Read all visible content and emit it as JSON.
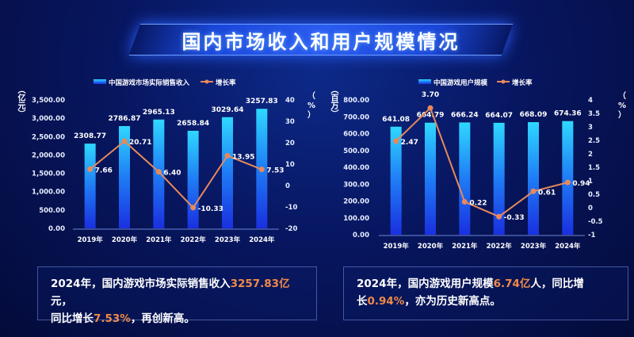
{
  "title": "国内市场收入和用户规模情况",
  "chart_data": [
    {
      "type": "bar",
      "categories": [
        "2019年",
        "2020年",
        "2021年",
        "2022年",
        "2023年",
        "2024年"
      ],
      "series": [
        {
          "name": "中国游戏市场实际销售收入",
          "axis": "left",
          "values": [
            2308.77,
            2786.87,
            2965.13,
            2658.84,
            3029.64,
            3257.83
          ],
          "labels": [
            "2308.77",
            "2786.87",
            "2965.13",
            "2658.84",
            "3029.64",
            "3257.83"
          ]
        },
        {
          "name": "增长率",
          "type": "line",
          "axis": "right",
          "values": [
            7.66,
            20.71,
            6.4,
            -10.33,
            13.95,
            7.53
          ],
          "labels": [
            "7.66",
            "20.71",
            "6.40",
            "-10.33",
            "13.95",
            "7.53"
          ]
        }
      ],
      "ylabel": "（亿元）",
      "y2label": "（%）",
      "ylim": [
        0,
        3500
      ],
      "y2lim": [
        -20,
        40
      ],
      "yticks": [
        "0.00",
        "500.00",
        "1,000.00",
        "1,500.00",
        "2,000.00",
        "2,500.00",
        "3,000.00",
        "3,500.00"
      ],
      "y2ticks": [
        "-20",
        "-10",
        "0",
        "10",
        "20",
        "30",
        "40"
      ],
      "legend": "top"
    },
    {
      "type": "bar",
      "categories": [
        "2019年",
        "2020年",
        "2021年",
        "2022年",
        "2023年",
        "2024年"
      ],
      "series": [
        {
          "name": "中国游戏用户规模",
          "axis": "left",
          "values": [
            641.08,
            664.79,
            666.24,
            664.07,
            668.09,
            674.36
          ],
          "labels": [
            "641.08",
            "664.79",
            "666.24",
            "664.07",
            "668.09",
            "674.36"
          ]
        },
        {
          "name": "增长率",
          "type": "line",
          "axis": "right",
          "values": [
            2.47,
            3.7,
            0.22,
            -0.33,
            0.61,
            0.94
          ],
          "labels": [
            "2.47",
            "3.70",
            "0.22",
            "-0.33",
            "0.61",
            "0.94"
          ]
        }
      ],
      "ylabel": "（百万）",
      "y2label": "（%）",
      "ylim": [
        0,
        800
      ],
      "y2lim": [
        -1,
        4
      ],
      "yticks": [
        "0.00",
        "100.00",
        "200.00",
        "300.00",
        "400.00",
        "500.00",
        "600.00",
        "700.00",
        "800.00"
      ],
      "y2ticks": [
        "-1",
        "-0.5",
        "0",
        "0.5",
        "1",
        "1.5",
        "2",
        "2.5",
        "3",
        "3.5",
        "4"
      ],
      "legend": "top"
    }
  ],
  "summary_left": {
    "p1": "2024年，国内游戏市场实际销售收入",
    "v1": "3257.83亿",
    "p2": "元，",
    "p3": "同比增长",
    "v2": "7.53%",
    "p4": "，再创新高。"
  },
  "summary_right": {
    "p1": "2024年，国内游戏用户规模",
    "v1": "6.74亿",
    "p2": "人，同比增",
    "p3": "长",
    "v2": "0.94%",
    "p4": "，亦为历史新高点。"
  },
  "colors": {
    "bar_top": "#2fd8ff",
    "bar_bottom": "#1a2fe0",
    "line": "#e8895a"
  }
}
